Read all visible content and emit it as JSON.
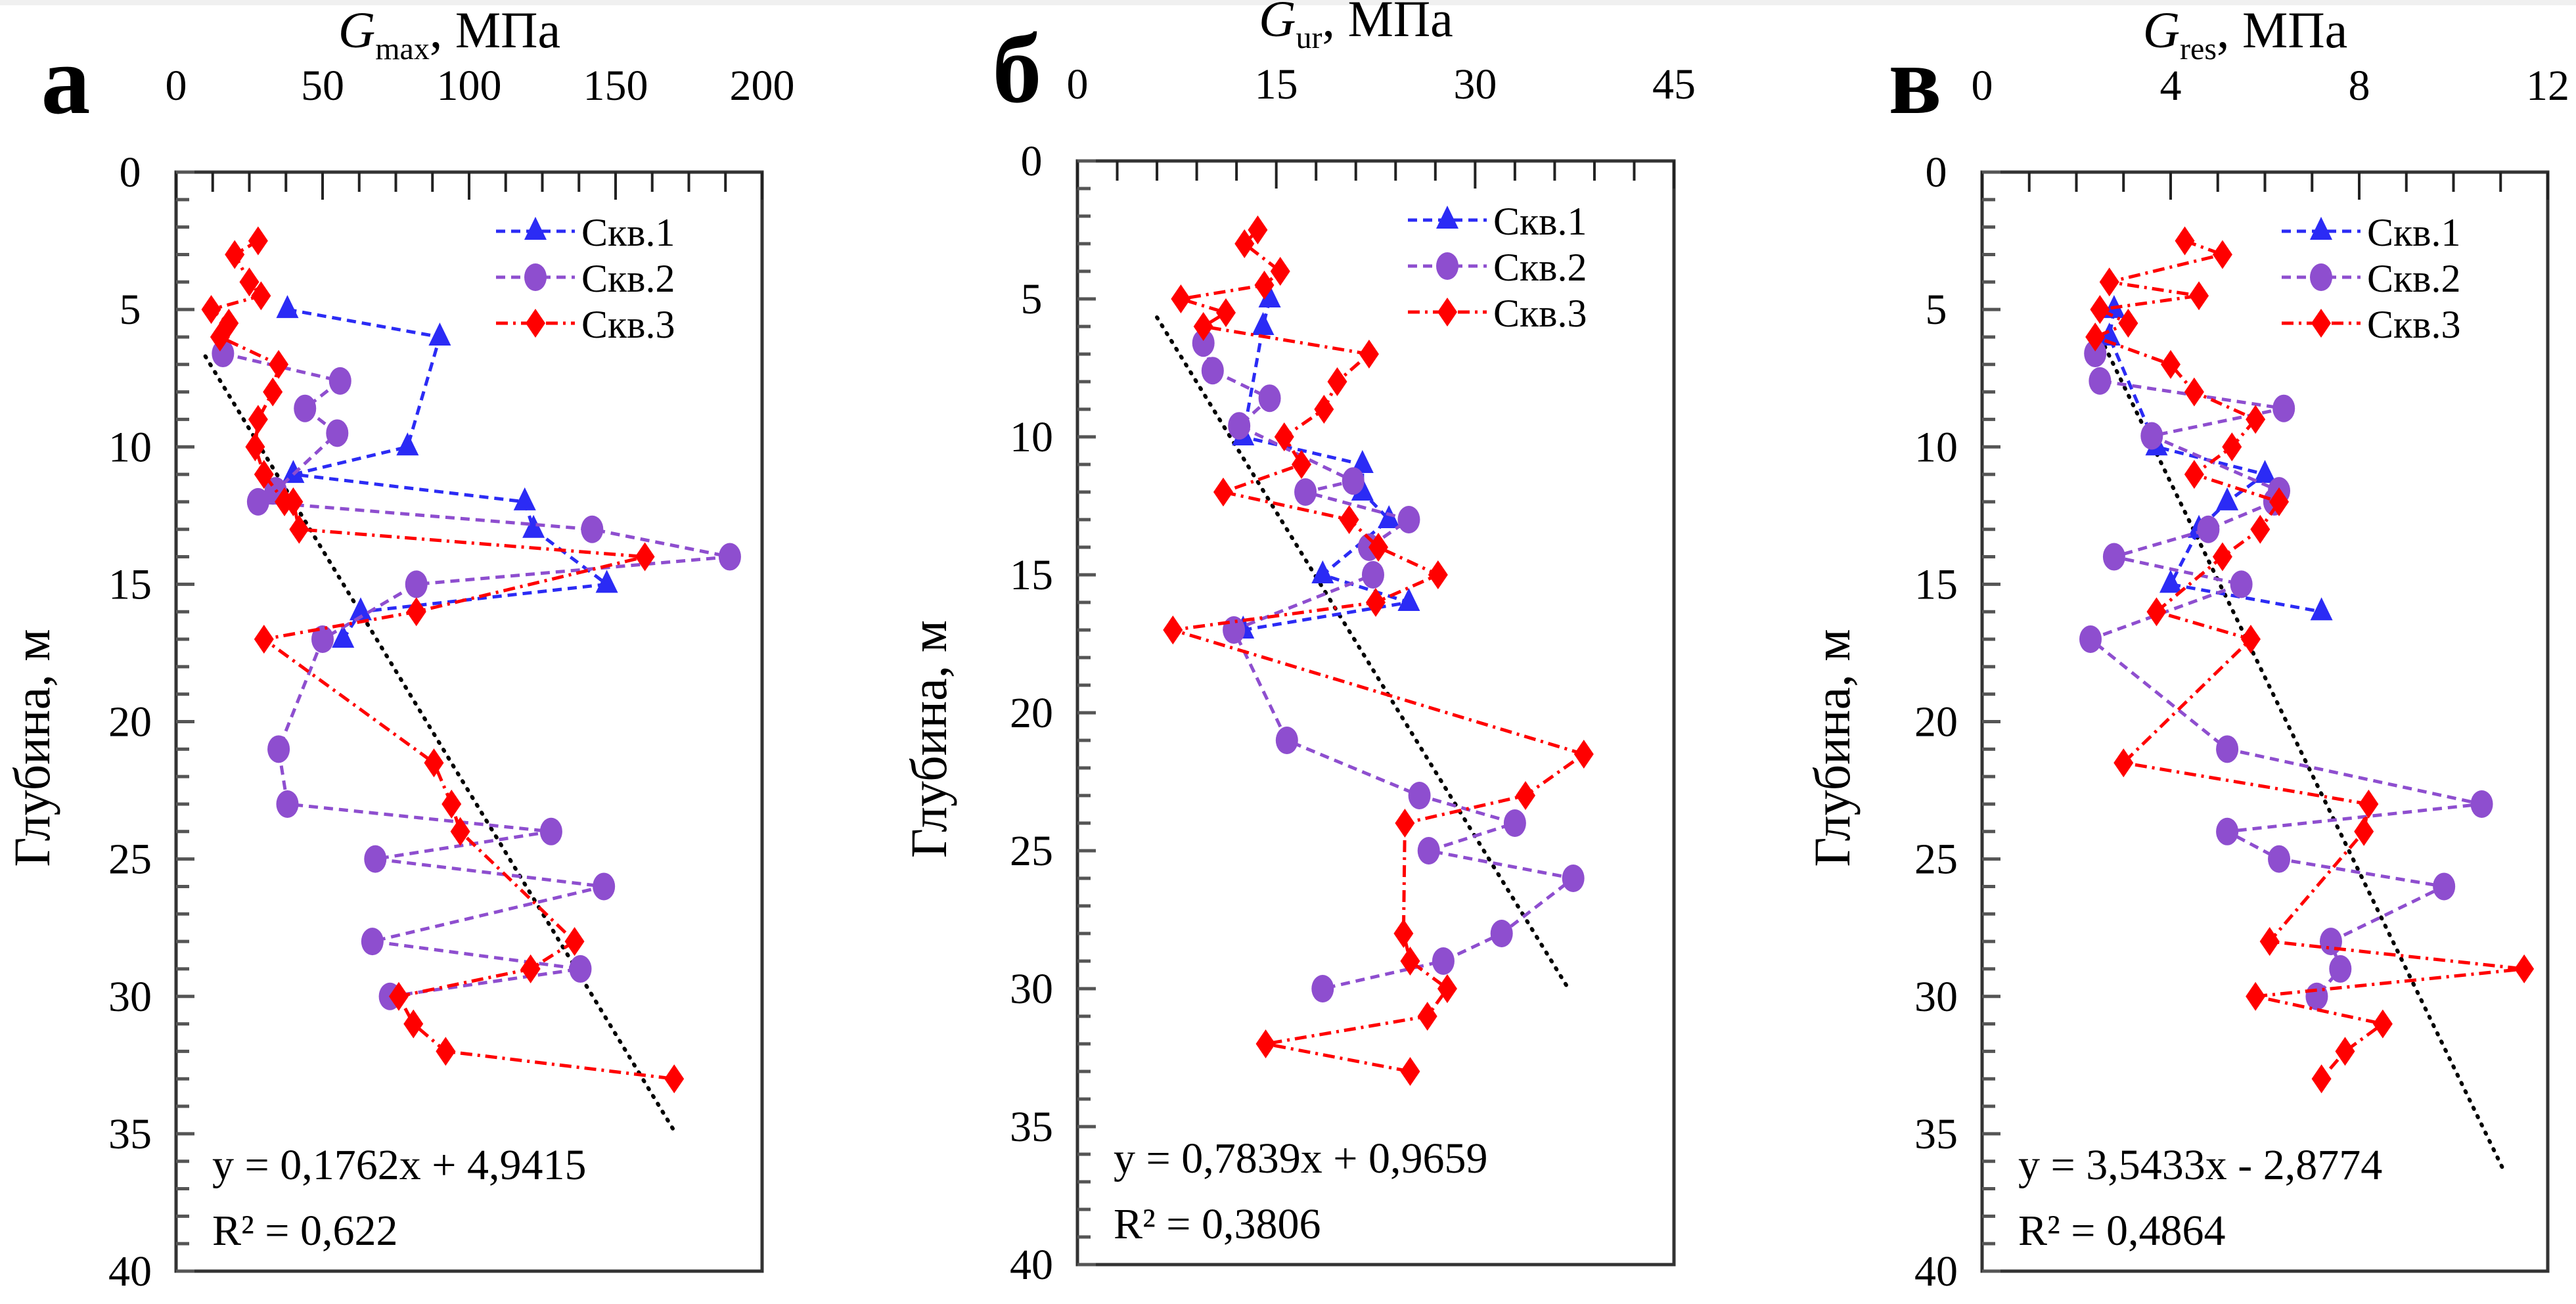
{
  "figure": {
    "series_names": [
      "Скв.1",
      "Скв.2",
      "Скв.3"
    ],
    "series_colors": {
      "Скв.1": "#2b2bf5",
      "Скв.2": "#8e4ecf",
      "Скв.3": "#ff0000"
    },
    "trend_color": "#000000"
  },
  "chart_data": [
    {
      "type": "scatter",
      "panel_letter": "а",
      "title_main": "G",
      "title_sub": "max",
      "title_unit": ", МПа",
      "xlabel": "Gmax, МПа",
      "ylabel": "Глубина, м",
      "xlim": [
        0,
        200
      ],
      "ylim": [
        0,
        40
      ],
      "y_inverted": true,
      "x_axis_position": "top",
      "xticks": [
        "0",
        "50",
        "100",
        "150",
        "200"
      ],
      "xtick_values": [
        0,
        50,
        100,
        150,
        200
      ],
      "x_minor_step": 12.5,
      "yticks": [
        "0",
        "5",
        "10",
        "15",
        "20",
        "25",
        "30",
        "35",
        "40"
      ],
      "ytick_values": [
        0,
        5,
        10,
        15,
        20,
        25,
        30,
        35,
        40
      ],
      "y_minor_step": 1,
      "grid": false,
      "legend_position": "top-right",
      "series": [
        {
          "name": "Скв.1",
          "marker": "triangle",
          "line": "dashed",
          "points": [
            [
              38,
              5
            ],
            [
              90,
              6
            ],
            [
              79,
              10
            ],
            [
              40,
              11
            ],
            [
              119,
              12
            ],
            [
              122,
              13
            ],
            [
              147,
              15
            ],
            [
              63,
              16
            ],
            [
              57,
              17
            ]
          ]
        },
        {
          "name": "Скв.2",
          "marker": "circle",
          "line": "dashed",
          "points": [
            [
              16,
              6.6
            ],
            [
              56,
              7.6
            ],
            [
              44,
              8.6
            ],
            [
              55,
              9.5
            ],
            [
              34,
              11.6
            ],
            [
              28,
              12
            ],
            [
              142,
              13
            ],
            [
              189,
              14
            ],
            [
              82,
              15
            ],
            [
              50,
              17
            ],
            [
              35,
              21
            ],
            [
              38,
              23
            ],
            [
              128,
              24
            ],
            [
              68,
              25
            ],
            [
              146,
              26
            ],
            [
              67,
              28
            ],
            [
              138,
              29
            ],
            [
              73,
              30
            ]
          ]
        },
        {
          "name": "Скв.3",
          "marker": "diamond",
          "line": "dashdot",
          "points": [
            [
              28,
              2.5
            ],
            [
              20,
              3
            ],
            [
              25,
              4
            ],
            [
              29,
              4.5
            ],
            [
              12,
              5
            ],
            [
              18,
              5.5
            ],
            [
              15,
              6
            ],
            [
              35,
              7
            ],
            [
              33,
              8
            ],
            [
              28,
              9
            ],
            [
              27,
              10
            ],
            [
              30,
              11
            ],
            [
              37,
              12
            ],
            [
              40,
              12
            ],
            [
              42,
              13
            ],
            [
              160,
              14
            ],
            [
              82,
              16
            ],
            [
              30,
              17
            ],
            [
              88,
              21.5
            ],
            [
              94,
              23
            ],
            [
              97,
              24
            ],
            [
              136,
              28
            ],
            [
              121,
              29
            ],
            [
              76,
              30
            ],
            [
              81,
              31
            ],
            [
              92,
              32
            ],
            [
              170,
              33
            ]
          ]
        }
      ],
      "trendline": {
        "equation": "y = 0,1762x + 4,9415",
        "r2": "R² = 0,622",
        "slope": 0.1762,
        "intercept": 4.9415,
        "x_range": [
          10,
          170
        ]
      }
    },
    {
      "type": "scatter",
      "panel_letter": "б",
      "title_main": "G",
      "title_sub": "ur",
      "title_unit": ", МПа",
      "xlabel": "Gur, МПа",
      "ylabel": "Глубина, м",
      "xlim": [
        0,
        45
      ],
      "ylim": [
        0,
        40
      ],
      "y_inverted": true,
      "x_axis_position": "top",
      "xticks": [
        "0",
        "15",
        "30",
        "45"
      ],
      "xtick_values": [
        0,
        15,
        30,
        45
      ],
      "x_minor_step": 3,
      "yticks": [
        "0",
        "5",
        "10",
        "15",
        "20",
        "25",
        "30",
        "35",
        "40"
      ],
      "ytick_values": [
        0,
        5,
        10,
        15,
        20,
        25,
        30,
        35,
        40
      ],
      "y_minor_step": 1,
      "grid": false,
      "legend_position": "top-right",
      "series": [
        {
          "name": "Скв.1",
          "marker": "triangle",
          "line": "dashed",
          "points": [
            [
              14.5,
              5
            ],
            [
              14,
              6
            ],
            [
              12.5,
              10
            ],
            [
              21.5,
              11
            ],
            [
              21.5,
              12
            ],
            [
              23.5,
              13
            ],
            [
              18.5,
              15
            ],
            [
              25,
              16
            ],
            [
              12.5,
              17
            ]
          ]
        },
        {
          "name": "Скв.2",
          "marker": "circle",
          "line": "dashed",
          "points": [
            [
              9.5,
              6.6
            ],
            [
              10.2,
              7.6
            ],
            [
              14.5,
              8.6
            ],
            [
              12.2,
              9.6
            ],
            [
              20.8,
              11.6
            ],
            [
              17.2,
              12
            ],
            [
              25,
              13
            ],
            [
              22,
              14
            ],
            [
              22.3,
              15
            ],
            [
              11.8,
              17
            ],
            [
              15.8,
              21
            ],
            [
              25.8,
              23
            ],
            [
              33,
              24
            ],
            [
              26.5,
              25
            ],
            [
              37.4,
              26
            ],
            [
              32,
              28
            ],
            [
              27.6,
              29
            ],
            [
              18.5,
              30
            ]
          ]
        },
        {
          "name": "Скв.3",
          "marker": "diamond",
          "line": "dashdot",
          "points": [
            [
              13.6,
              2.5
            ],
            [
              12.6,
              3
            ],
            [
              15.3,
              4
            ],
            [
              14.1,
              4.5
            ],
            [
              7.8,
              5
            ],
            [
              11.2,
              5.5
            ],
            [
              9.5,
              6
            ],
            [
              22,
              7
            ],
            [
              19.6,
              8
            ],
            [
              18.6,
              9
            ],
            [
              15.6,
              10
            ],
            [
              16.9,
              11
            ],
            [
              11,
              12
            ],
            [
              20.5,
              13
            ],
            [
              22.7,
              14
            ],
            [
              27.2,
              15
            ],
            [
              22.5,
              16
            ],
            [
              7.2,
              17
            ],
            [
              38.2,
              21.5
            ],
            [
              33.8,
              23
            ],
            [
              24.7,
              24
            ],
            [
              24.6,
              28
            ],
            [
              25.1,
              29
            ],
            [
              27.9,
              30
            ],
            [
              26.4,
              31
            ],
            [
              14.2,
              32
            ],
            [
              25.1,
              33
            ]
          ]
        }
      ],
      "trendline": {
        "equation": "y = 0,7839x + 0,9659",
        "r2": "R² = 0,3806",
        "slope": 0.7839,
        "intercept": 0.9659,
        "x_range": [
          6,
          37
        ]
      }
    },
    {
      "type": "scatter",
      "panel_letter": "в",
      "title_main": "G",
      "title_sub": "res",
      "title_unit": ", МПа",
      "xlabel": "Gres, МПа",
      "ylabel": "Глубина, м",
      "xlim": [
        0,
        12
      ],
      "ylim": [
        0,
        40
      ],
      "y_inverted": true,
      "x_axis_position": "top",
      "xticks": [
        "0",
        "4",
        "8",
        "12"
      ],
      "xtick_values": [
        0,
        4,
        8,
        12
      ],
      "x_minor_step": 1,
      "yticks": [
        "0",
        "5",
        "10",
        "15",
        "20",
        "25",
        "30",
        "35",
        "40"
      ],
      "ytick_values": [
        0,
        5,
        10,
        15,
        20,
        25,
        30,
        35,
        40
      ],
      "y_minor_step": 1,
      "grid": false,
      "legend_position": "top-right",
      "series": [
        {
          "name": "Скв.1",
          "marker": "triangle",
          "line": "dashed",
          "points": [
            [
              2.8,
              5
            ],
            [
              2.7,
              6
            ],
            [
              3.7,
              10
            ],
            [
              6,
              11
            ],
            [
              5.2,
              12
            ],
            [
              4.6,
              13
            ],
            [
              4,
              15
            ],
            [
              7.2,
              16
            ]
          ]
        },
        {
          "name": "Скв.2",
          "marker": "circle",
          "line": "dashed",
          "points": [
            [
              2.4,
              6.6
            ],
            [
              2.5,
              7.6
            ],
            [
              6.4,
              8.6
            ],
            [
              3.6,
              9.6
            ],
            [
              6.3,
              11.6
            ],
            [
              6.2,
              12
            ],
            [
              4.8,
              13
            ],
            [
              2.8,
              14
            ],
            [
              5.5,
              15
            ],
            [
              2.3,
              17
            ],
            [
              5.2,
              21
            ],
            [
              10.6,
              23
            ],
            [
              5.2,
              24
            ],
            [
              6.3,
              25
            ],
            [
              9.8,
              26
            ],
            [
              7.4,
              28
            ],
            [
              7.6,
              29
            ],
            [
              7.1,
              30
            ]
          ]
        },
        {
          "name": "Скв.3",
          "marker": "diamond",
          "line": "dashdot",
          "points": [
            [
              4.3,
              2.5
            ],
            [
              5.1,
              3
            ],
            [
              2.7,
              4
            ],
            [
              4.6,
              4.5
            ],
            [
              2.5,
              5
            ],
            [
              3.1,
              5.5
            ],
            [
              2.4,
              6
            ],
            [
              4,
              7
            ],
            [
              4.5,
              8
            ],
            [
              5.8,
              9
            ],
            [
              5.3,
              10
            ],
            [
              4.5,
              11
            ],
            [
              6.3,
              12
            ],
            [
              5.9,
              13
            ],
            [
              5.1,
              14
            ],
            [
              3.7,
              16
            ],
            [
              5.7,
              17
            ],
            [
              3,
              21.5
            ],
            [
              8.2,
              23
            ],
            [
              8.1,
              24
            ],
            [
              6.1,
              28
            ],
            [
              11.5,
              29
            ],
            [
              5.8,
              30
            ],
            [
              8.5,
              31
            ],
            [
              7.7,
              32
            ],
            [
              7.2,
              33
            ]
          ]
        }
      ],
      "trendline": {
        "equation": "y = 3,5433x - 2,8774",
        "r2": "R² = 0,4864",
        "slope": 3.5433,
        "intercept": -2.8774,
        "x_range": [
          2.6,
          11.1
        ]
      }
    }
  ]
}
